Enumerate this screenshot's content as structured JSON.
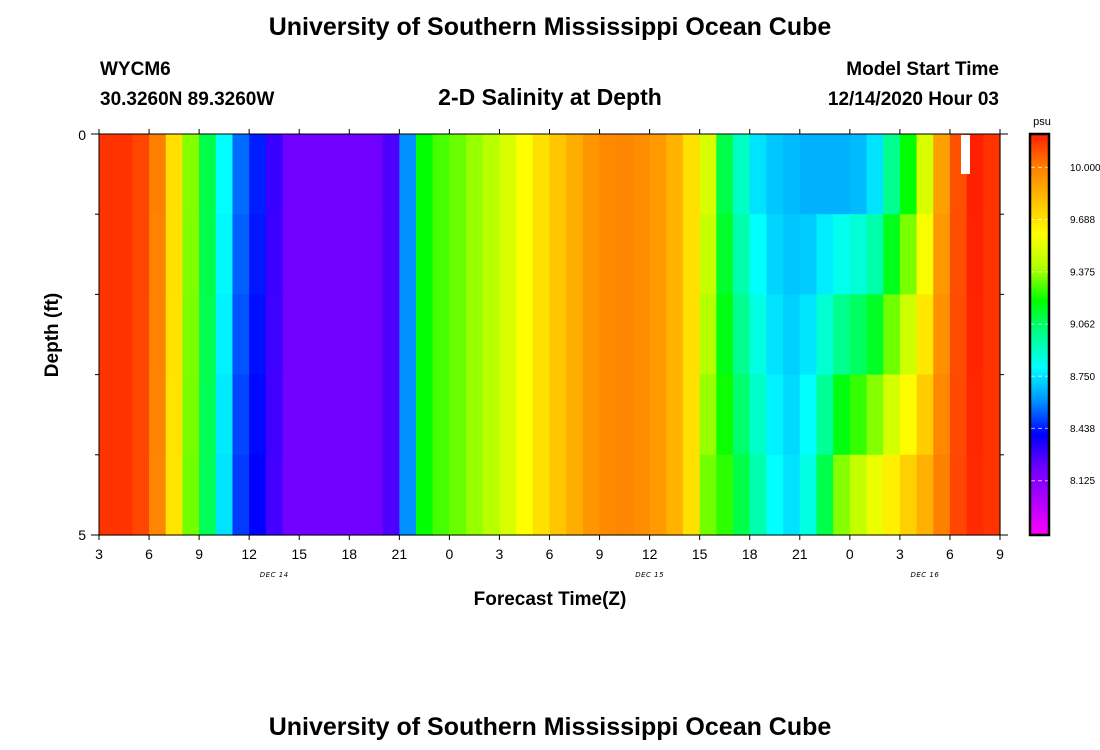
{
  "page": {
    "title_top": "University of Southern Mississippi Ocean Cube",
    "title_bottom": "University of Southern Mississippi Ocean Cube",
    "station": "WYCM6",
    "location": "30.3260N 89.3260W",
    "model_start_label": "Model Start Time",
    "model_start_value": "12/14/2020 Hour 03",
    "plot_title": "2-D Salinity at Depth"
  },
  "chart_data": {
    "type": "heatmap",
    "title": "2-D Salinity at Depth",
    "xlabel": "Forecast Time(Z)",
    "ylabel": "Depth (ft)",
    "y_ticks": [
      "0",
      "5"
    ],
    "ylim": [
      0,
      5
    ],
    "y_reversed": true,
    "x_tick_labels": [
      "3",
      "6",
      "9",
      "12",
      "15",
      "18",
      "21",
      "0",
      "3",
      "6",
      "9",
      "12",
      "15",
      "18",
      "21",
      "0",
      "3",
      "6",
      "9"
    ],
    "x_hours": [
      0,
      54
    ],
    "date_labels": [
      {
        "label": "DEC 14",
        "hour": 10.5
      },
      {
        "label": "DEC 15",
        "hour": 33
      },
      {
        "label": "DEC 16",
        "hour": 49.5
      }
    ],
    "colorbar": {
      "unit": "psu",
      "min": 7.8,
      "max": 10.2,
      "tick_labels": [
        "8.125",
        "8.438",
        "8.750",
        "9.062",
        "9.375",
        "9.688",
        "10.000"
      ],
      "tick_values": [
        8.125,
        8.438,
        8.75,
        9.062,
        9.375,
        9.688,
        10.0
      ],
      "stops": [
        "#ff00ff",
        "#b000ff",
        "#7000ff",
        "#0000ff",
        "#0090ff",
        "#00ffff",
        "#00ff90",
        "#00ff00",
        "#b0ff00",
        "#ffff00",
        "#ffc000",
        "#ff8000",
        "#ff2000"
      ]
    },
    "depth_layers": 5,
    "time_columns": 54,
    "surface_sample": [
      10.16,
      10.16,
      10.12,
      10.0,
      9.7,
      9.35,
      9.1,
      8.8,
      8.55,
      8.44,
      8.3,
      8.2,
      8.2,
      8.2,
      8.2,
      8.2,
      8.2,
      8.26,
      8.6,
      9.2,
      9.28,
      9.32,
      9.37,
      9.42,
      9.5,
      9.6,
      9.7,
      9.78,
      9.86,
      9.93,
      9.97,
      9.98,
      9.96,
      9.92,
      9.84,
      9.7,
      9.5,
      9.1,
      8.9,
      8.75,
      8.7,
      8.68,
      8.66,
      8.66,
      8.66,
      8.68,
      8.75,
      9.0,
      9.2,
      9.5,
      9.9,
      10.1,
      10.2,
      10.16
    ],
    "bottom_sample": [
      10.16,
      10.16,
      10.12,
      9.98,
      9.68,
      9.33,
      9.08,
      8.75,
      8.48,
      8.4,
      8.28,
      8.2,
      8.2,
      8.2,
      8.2,
      8.2,
      8.2,
      8.26,
      8.6,
      9.2,
      9.28,
      9.32,
      9.37,
      9.42,
      9.5,
      9.6,
      9.7,
      9.78,
      9.86,
      9.93,
      9.97,
      9.98,
      9.96,
      9.92,
      9.84,
      9.7,
      9.33,
      9.25,
      9.1,
      8.95,
      8.8,
      8.75,
      8.85,
      9.1,
      9.35,
      9.45,
      9.55,
      9.65,
      9.75,
      9.85,
      10.0,
      10.12,
      10.18,
      10.16
    ]
  }
}
